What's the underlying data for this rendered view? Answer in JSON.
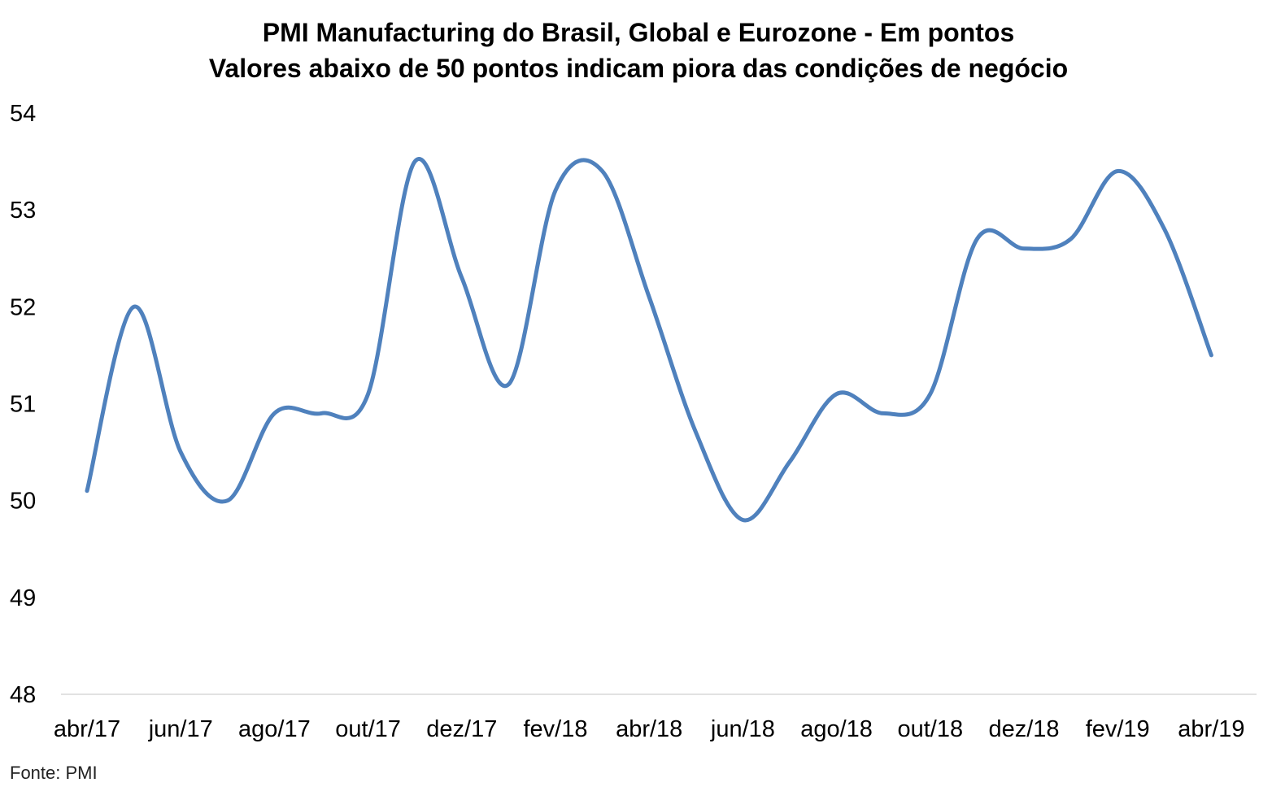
{
  "chart_data": {
    "type": "line",
    "title": "PMI Manufacturing do Brasil, Global e Eurozone - Em pontos",
    "subtitle": "Valores abaixo de 50 pontos indicam piora das condições de negócio",
    "xlabel": "",
    "ylabel": "",
    "x": [
      "abr/17",
      "mai/17",
      "jun/17",
      "jul/17",
      "ago/17",
      "set/17",
      "out/17",
      "nov/17",
      "dez/17",
      "jan/18",
      "fev/18",
      "mar/18",
      "abr/18",
      "mai/18",
      "jun/18",
      "jul/18",
      "ago/18",
      "set/18",
      "out/18",
      "nov/18",
      "dez/18",
      "jan/19",
      "fev/19",
      "mar/19",
      "abr/19"
    ],
    "x_tick_labels": [
      "abr/17",
      "jun/17",
      "ago/17",
      "out/17",
      "dez/17",
      "fev/18",
      "abr/18",
      "jun/18",
      "ago/18",
      "out/18",
      "dez/18",
      "fev/19",
      "abr/19"
    ],
    "series": [
      {
        "name": "",
        "color": "#4f81bd",
        "values": [
          50.1,
          52.0,
          50.5,
          50.0,
          50.9,
          50.9,
          51.1,
          53.5,
          52.3,
          51.2,
          53.2,
          53.4,
          52.1,
          50.7,
          49.8,
          50.4,
          51.1,
          50.9,
          51.1,
          52.7,
          52.6,
          52.7,
          53.4,
          52.8,
          51.5
        ]
      }
    ],
    "ylim": [
      48,
      54
    ],
    "y_ticks": [
      "48",
      "49",
      "50",
      "51",
      "52",
      "53",
      "54"
    ],
    "grid": false,
    "legend": "none",
    "source": "Fonte: PMI"
  }
}
